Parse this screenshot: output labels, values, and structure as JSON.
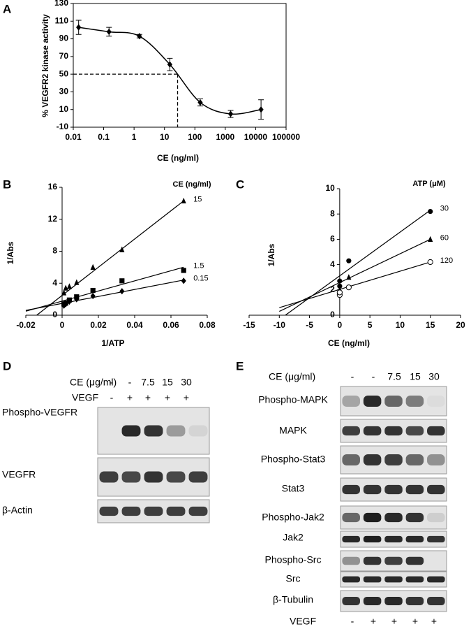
{
  "chart_data": [
    {
      "type": "line",
      "panel": "A",
      "ylabel": "% VEGFR2 kinase activity",
      "xlabel": "CE (ng/ml)",
      "log_x": true,
      "frame": true,
      "x": [
        0.015,
        0.15,
        1.5,
        15,
        150,
        1500,
        15000
      ],
      "values": [
        103,
        98,
        93,
        61,
        18,
        5,
        10
      ],
      "errors": [
        8,
        5,
        2,
        7,
        4,
        4,
        11
      ],
      "marker": "diamond",
      "color": "#000000",
      "reference": {
        "x": 27,
        "y": 50
      },
      "xlim": [
        0.01,
        100000
      ],
      "xticks": [
        0.01,
        0.1,
        1,
        10,
        100,
        1000,
        10000,
        100000
      ],
      "ylim": [
        -10,
        130
      ],
      "yticks": [
        -10,
        10,
        30,
        50,
        70,
        90,
        110,
        130
      ]
    },
    {
      "type": "scatter",
      "panel": "B",
      "ylabel": "1/Abs",
      "xlabel": "1/ATP",
      "legend_title": "CE (ng/ml)",
      "xlim": [
        -0.02,
        0.08
      ],
      "xticks": [
        -0.02,
        0,
        0.02,
        0.04,
        0.06,
        0.08
      ],
      "ylim": [
        0,
        16
      ],
      "yticks": [
        0,
        4,
        8,
        12,
        16
      ],
      "series": [
        {
          "name": "15",
          "marker": "triangle",
          "color": "#000000",
          "x": [
            0.001,
            0.002,
            0.004,
            0.008,
            0.017,
            0.033,
            0.067
          ],
          "values": [
            2.8,
            3.4,
            3.6,
            4.1,
            6.0,
            8.2,
            14.3
          ],
          "fit": {
            "x": [
              -0.014,
              0.067
            ],
            "values": [
              0,
              14.3
            ]
          }
        },
        {
          "name": "1.5",
          "marker": "square",
          "color": "#000000",
          "x": [
            0.001,
            0.002,
            0.004,
            0.008,
            0.017,
            0.033,
            0.067
          ],
          "values": [
            1.4,
            1.5,
            1.9,
            2.3,
            3.1,
            4.3,
            5.6
          ],
          "fit": {
            "x": [
              -0.02,
              0.067
            ],
            "values": [
              0.5,
              6.0
            ]
          }
        },
        {
          "name": "0.15",
          "marker": "diamond",
          "color": "#000000",
          "x": [
            0.001,
            0.002,
            0.004,
            0.008,
            0.017,
            0.033,
            0.067
          ],
          "values": [
            1.2,
            1.4,
            1.7,
            2.0,
            2.4,
            3.0,
            4.3
          ],
          "fit": {
            "x": [
              -0.02,
              0.067
            ],
            "values": [
              0.6,
              4.4
            ]
          }
        }
      ]
    },
    {
      "type": "scatter",
      "panel": "C",
      "ylabel": "1/Abs",
      "xlabel": "CE (ng/ml)",
      "legend_title": "ATP (μM)",
      "xlim": [
        -15,
        20
      ],
      "xticks": [
        -15,
        -10,
        -5,
        0,
        5,
        10,
        15,
        20
      ],
      "ylim": [
        0,
        10
      ],
      "yticks": [
        0,
        2,
        4,
        6,
        8,
        10
      ],
      "series": [
        {
          "name": "30",
          "marker": "circle",
          "color": "#000000",
          "x": [
            0,
            0,
            1.5,
            15
          ],
          "values": [
            2.3,
            2.7,
            4.3,
            8.2
          ],
          "fit": {
            "x": [
              -9,
              15
            ],
            "values": [
              0,
              8.3
            ]
          }
        },
        {
          "name": "60",
          "marker": "triangle",
          "color": "#000000",
          "x": [
            0,
            1.5,
            15
          ],
          "values": [
            2.0,
            3.0,
            6.0
          ],
          "fit": {
            "x": [
              -10,
              15
            ],
            "values": [
              0.3,
              6.0
            ]
          }
        },
        {
          "name": "120",
          "marker": "open-circle",
          "color": "#000000",
          "x": [
            0,
            0,
            1.5,
            15
          ],
          "values": [
            1.6,
            1.8,
            2.2,
            4.2
          ],
          "fit": {
            "x": [
              -10,
              15
            ],
            "values": [
              0.6,
              4.2
            ]
          }
        }
      ]
    }
  ],
  "blots": {
    "D": {
      "panel": "D",
      "treatments": [
        {
          "label": "CE (μg/ml)",
          "lanes": [
            "-",
            "-",
            "7.5",
            "15",
            "30"
          ]
        },
        {
          "label": "VEGF",
          "lanes": [
            "-",
            "+",
            "+",
            "+",
            "+"
          ]
        }
      ],
      "rows": [
        "Phospho-VEGFR",
        "VEGFR",
        "β-Actin"
      ]
    },
    "E": {
      "panel": "E",
      "treatments": [
        {
          "label": "CE (μg/ml)",
          "lanes": [
            "-",
            "-",
            "7.5",
            "15",
            "30"
          ]
        },
        {
          "label": "VEGF",
          "lanes": [
            "-",
            "+",
            "+",
            "+",
            "+"
          ]
        }
      ],
      "rows": [
        "Phospho-MAPK",
        "MAPK",
        "Phospho-Stat3",
        "Stat3",
        "Phospho-Jak2",
        "Jak2",
        "Phospho-Src",
        "Src",
        "β-Tubulin"
      ]
    }
  }
}
